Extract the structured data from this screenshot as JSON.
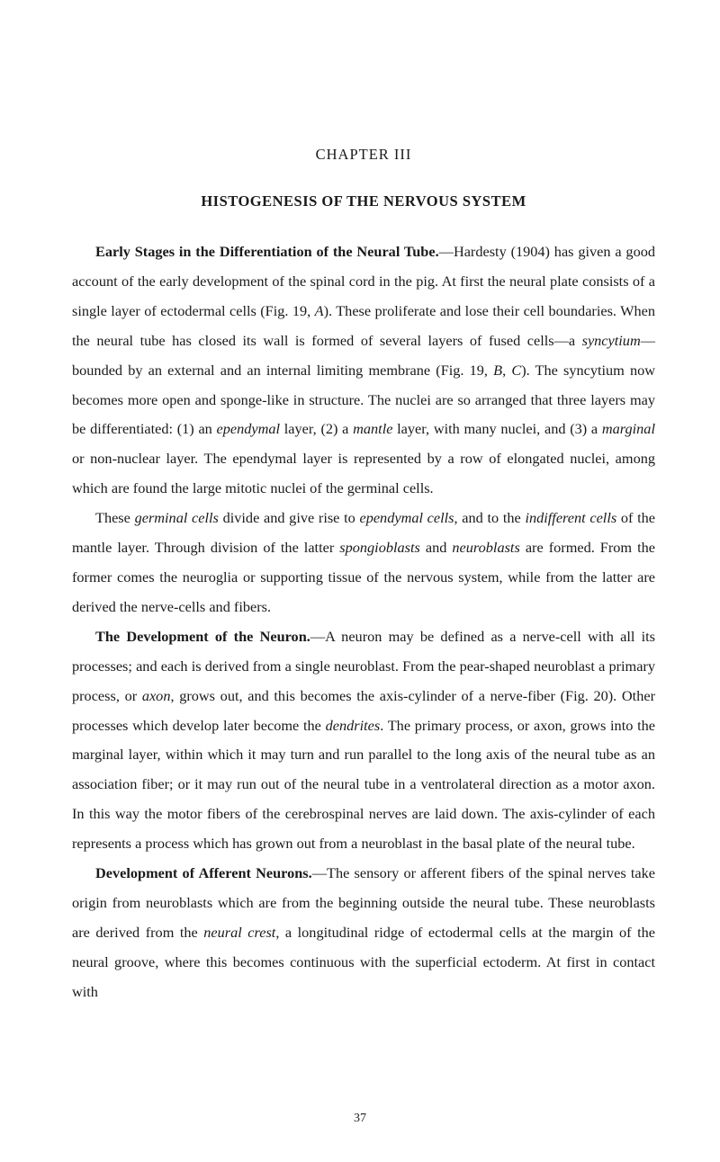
{
  "chapterHeading": "CHAPTER III",
  "title": "HISTOGENESIS OF THE NERVOUS SYSTEM",
  "p1": {
    "bold": "Early Stages in the Differentiation of the Neural Tube.",
    "t1": "—Hardesty (1904) has given a good account of the early development of the spinal cord in the pig. At first the neural plate consists of a single layer of ectodermal cells (Fig. 19, ",
    "i1": "A",
    "t2": "). These proliferate and lose their cell boundaries. When the neural tube has closed its wall is formed of several layers of fused cells—a ",
    "i2": "syncytium",
    "t3": "—bounded by an external and an internal limiting membrane (Fig. 19, ",
    "i3": "B",
    "t4": ", ",
    "i4": "C",
    "t5": "). The syn­cytium now becomes more open and sponge-like in structure. The nuclei are so arranged that three layers may be differentiated: (1) an ",
    "i5": "ependymal",
    "t6": " layer, (2) a ",
    "i6": "mantle",
    "t7": " layer, with many nuclei, and (3) a ",
    "i7": "marginal",
    "t8": " or non-nuclear layer. The ependymal layer is represented by a row of elongated nuclei, among which are found the large mitotic nuclei of the germinal cells."
  },
  "p2": {
    "t1": "These ",
    "i1": "germinal cells",
    "t2": " divide and give rise to ",
    "i2": "ependymal cells",
    "t3": ", and to the ",
    "i3": "indif­ferent cells",
    "t4": " of the mantle layer. Through division of the latter ",
    "i4": "spongioblasts",
    "t5": " and ",
    "i5": "neuroblasts",
    "t6": " are formed. From the former comes the neuroglia or supporting tissue of the nervous system, while from the latter are derived the nerve-cells and fibers."
  },
  "p3": {
    "bold": "The Development of the Neuron.",
    "t1": "—A neuron may be defined as a nerve-cell with all its processes; and each is derived from a single neuroblast. From the pear-shaped neuroblast a primary process, or ",
    "i1": "axon",
    "t2": ", grows out, and this be­comes the axis-cylinder of a nerve-fiber (Fig. 20). Other processes which de­velop later become the ",
    "i2": "dendrites",
    "t3": ". The primary process, or axon, grows into the marginal layer, within which it may turn and run parallel to the long axis of the neural tube as an association fiber; or it may run out of the neural tube in a ven­trolateral direction as a motor axon. In this way the motor fibers of the cere­brospinal nerves are laid down. The axis-cylinder of each represents a process which has grown out from a neuroblast in the basal plate of the neural tube."
  },
  "p4": {
    "bold": "Development of Afferent Neurons.",
    "t1": "—The sensory or afferent fibers of the spinal nerves take origin from neuroblasts which are from the beginning out­side the neural tube. These neuroblasts are derived from the ",
    "i1": "neural crest",
    "t2": ", a longitudinal ridge of ectodermal cells at the margin of the neural groove, where this becomes continuous with the superficial ectoderm. At first in contact with"
  },
  "pageNumber": "37"
}
